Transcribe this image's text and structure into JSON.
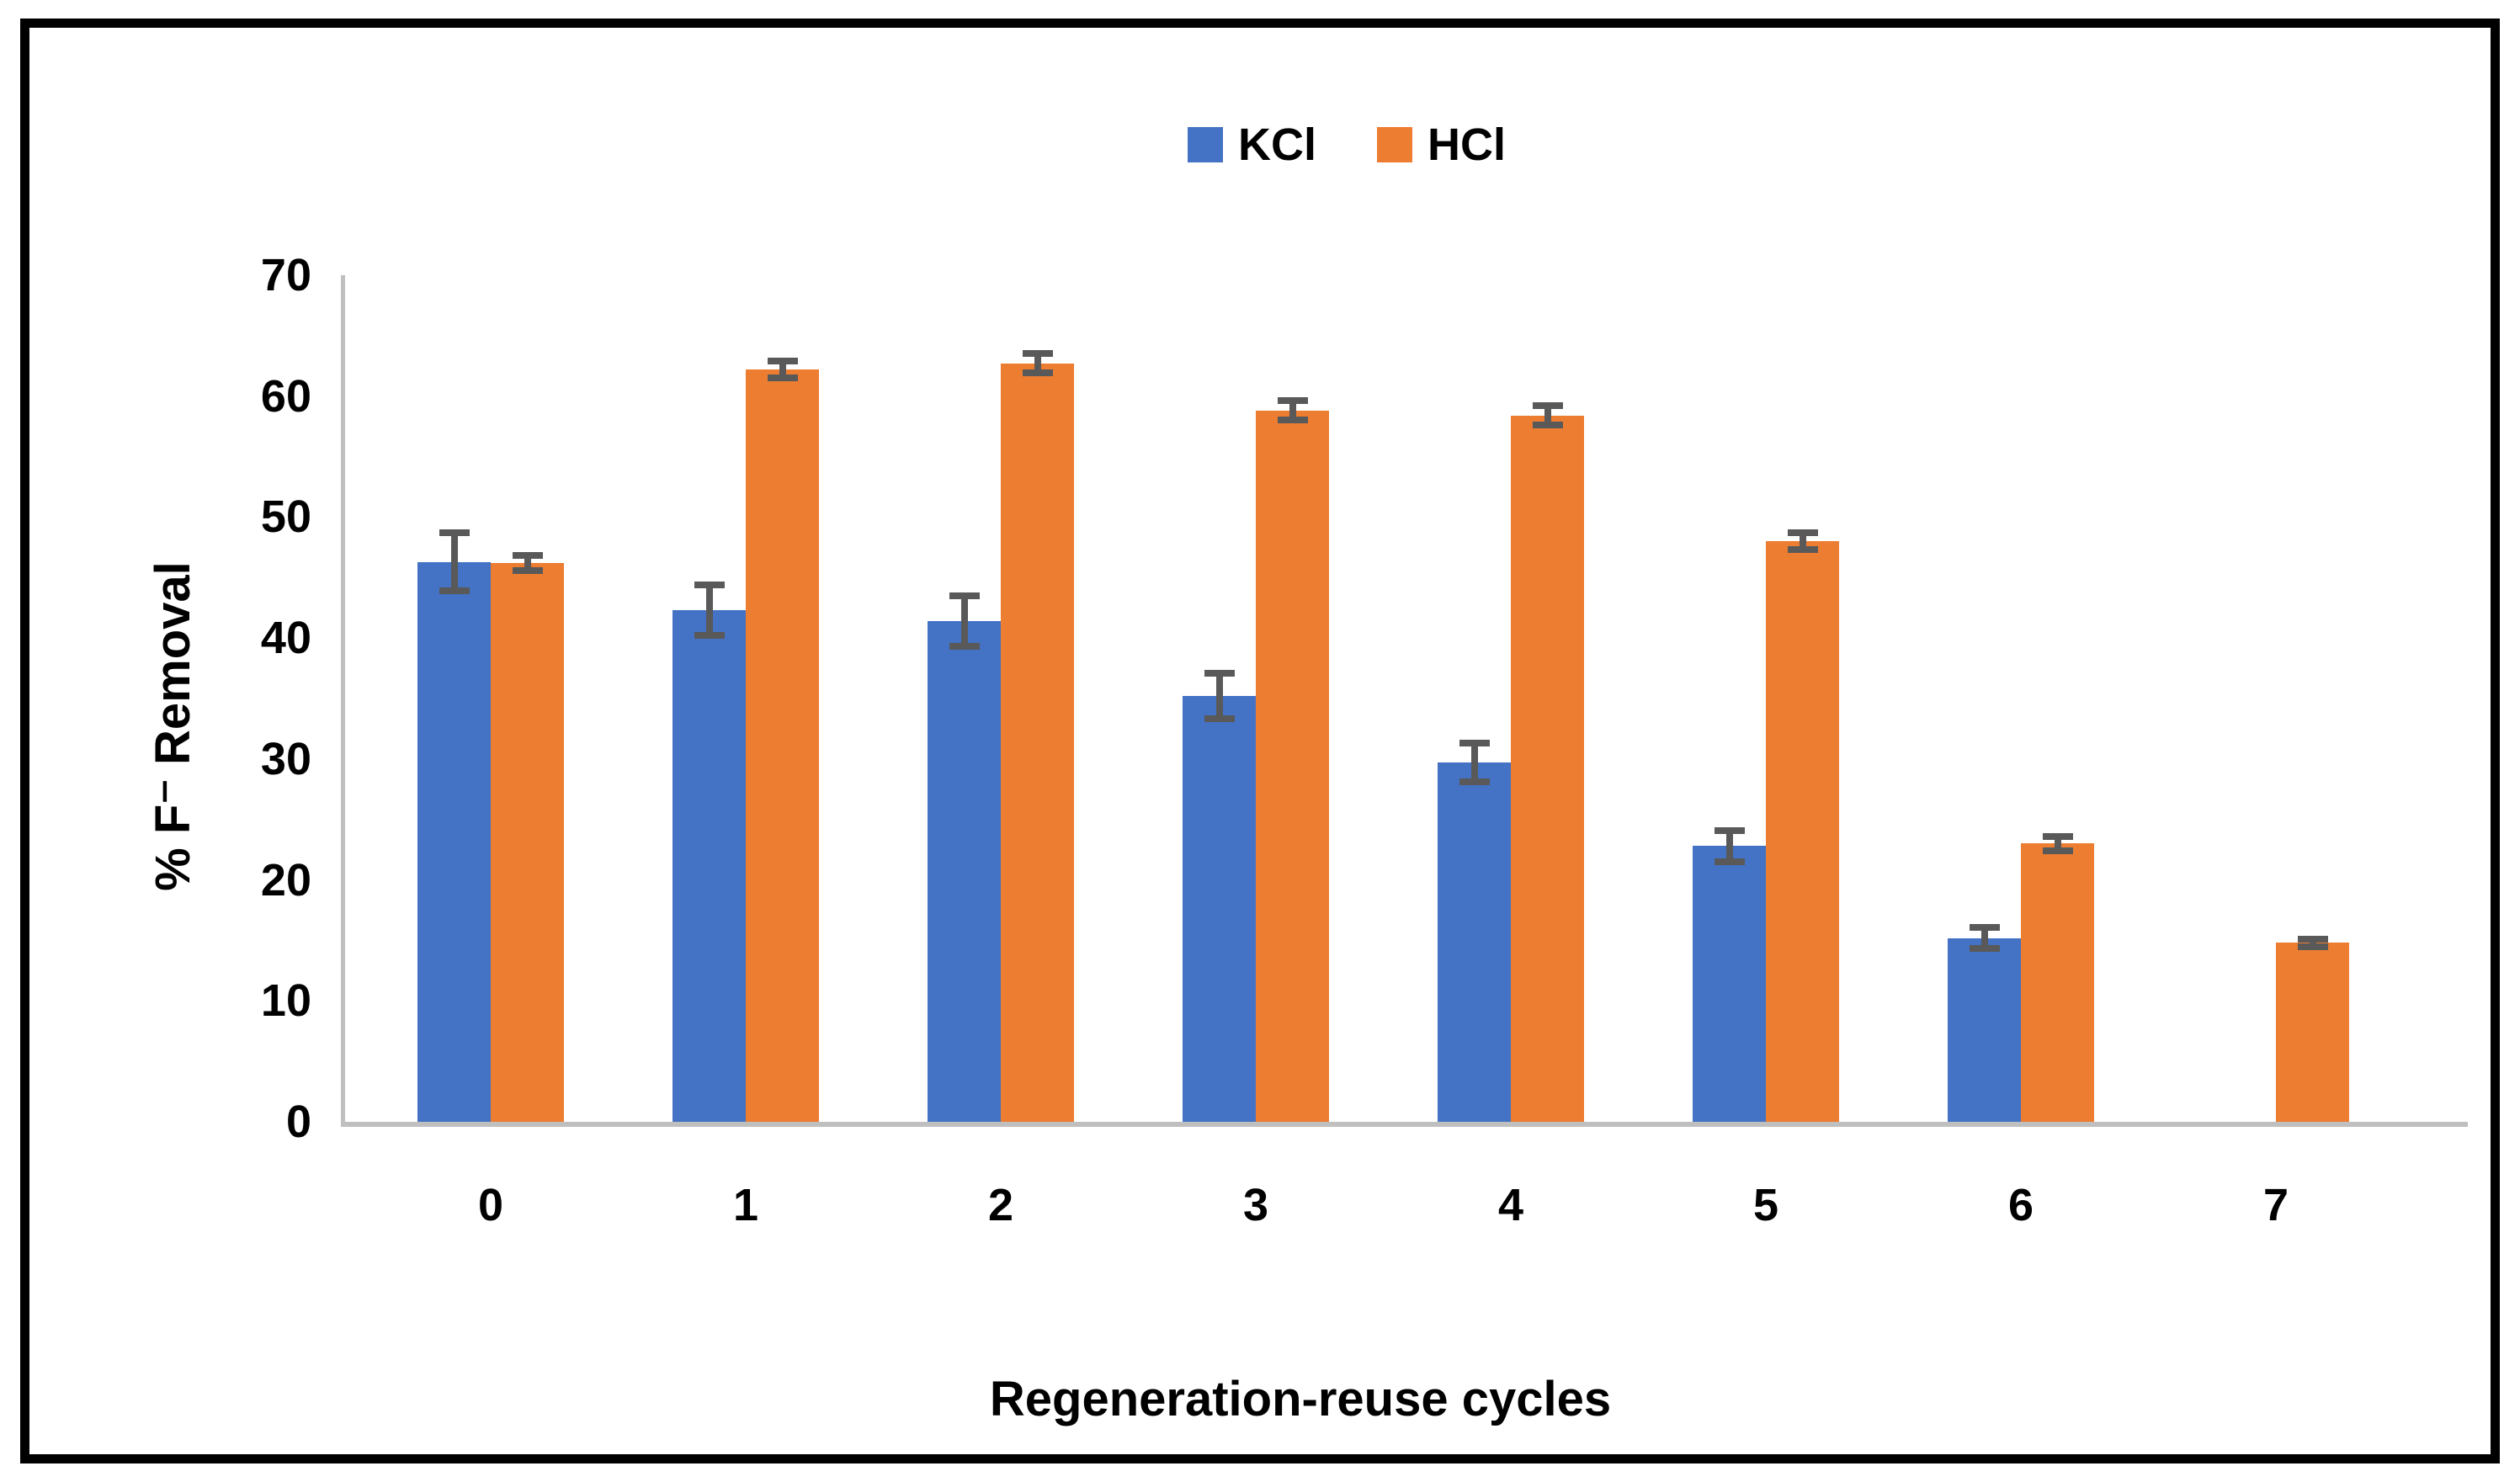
{
  "chart_data": {
    "type": "bar",
    "title": "",
    "categories": [
      "0",
      "1",
      "2",
      "3",
      "4",
      "5",
      "6",
      "7"
    ],
    "series": [
      {
        "name": "KCl",
        "color": "#4472C4",
        "values": [
          46.3,
          42.3,
          41.4,
          35.2,
          29.7,
          22.8,
          15.2,
          null
        ],
        "errors": [
          2.4,
          2.1,
          2.1,
          1.9,
          1.6,
          1.3,
          0.9,
          null
        ]
      },
      {
        "name": "HCl",
        "color": "#ED7D31",
        "values": [
          46.2,
          62.2,
          62.7,
          58.8,
          58.4,
          48.0,
          23.0,
          14.8
        ],
        "errors": [
          0.6,
          0.7,
          0.8,
          0.8,
          0.8,
          0.7,
          0.6,
          0.3
        ]
      }
    ],
    "xlabel": "Regeneration-reuse cycles",
    "ylabel": "% F⁻ Removal",
    "ylim": [
      0,
      70
    ],
    "ytick_step": 10,
    "legend_position": "top-center",
    "grid": false,
    "error_bar_color": "#595959",
    "axis_line_color": "#BFBFBF",
    "text_color": "#000000"
  }
}
